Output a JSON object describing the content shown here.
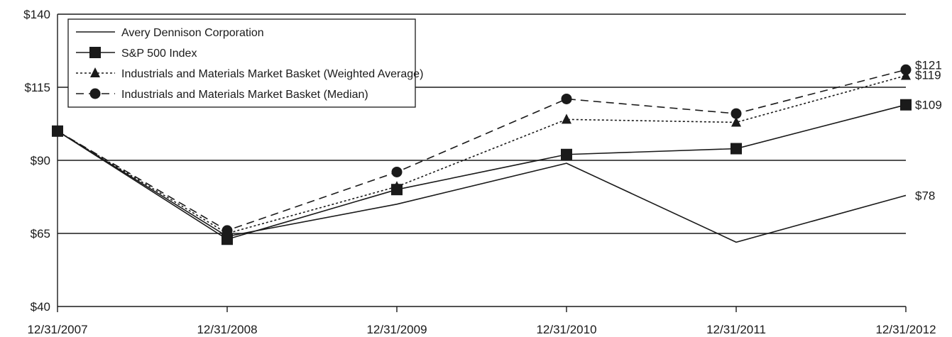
{
  "chart_data": {
    "type": "line",
    "title": "",
    "xlabel": "",
    "ylabel": "",
    "categories": [
      "12/31/2007",
      "12/31/2008",
      "12/31/2009",
      "12/31/2010",
      "12/31/2011",
      "12/31/2012"
    ],
    "y_ticks": [
      "$40",
      "$65",
      "$90",
      "$115",
      "$140"
    ],
    "ylim": [
      40,
      140
    ],
    "grid": "horizontal",
    "legend_position": "top-left",
    "series": [
      {
        "name": "Avery Dennison Corporation",
        "values": [
          100,
          64,
          75,
          89,
          62,
          78
        ],
        "line_style": "solid",
        "marker": "none",
        "end_label": "$78"
      },
      {
        "name": "S&P 500 Index",
        "values": [
          100,
          63,
          80,
          92,
          94,
          109
        ],
        "line_style": "solid",
        "marker": "square",
        "end_label": "$109"
      },
      {
        "name": "Industrials and Materials Market Basket (Weighted Average)",
        "values": [
          100,
          65,
          81,
          104,
          103,
          119
        ],
        "line_style": "dotted",
        "marker": "triangle",
        "end_label": "$119"
      },
      {
        "name": "Industrials and Materials Market Basket (Median)",
        "values": [
          100,
          66,
          86,
          111,
          106,
          121
        ],
        "line_style": "dashed",
        "marker": "circle",
        "end_label": "$121"
      }
    ],
    "colors": {
      "line": "#1a1a1a",
      "grid": "#1a1a1a",
      "background": "#ffffff"
    }
  }
}
